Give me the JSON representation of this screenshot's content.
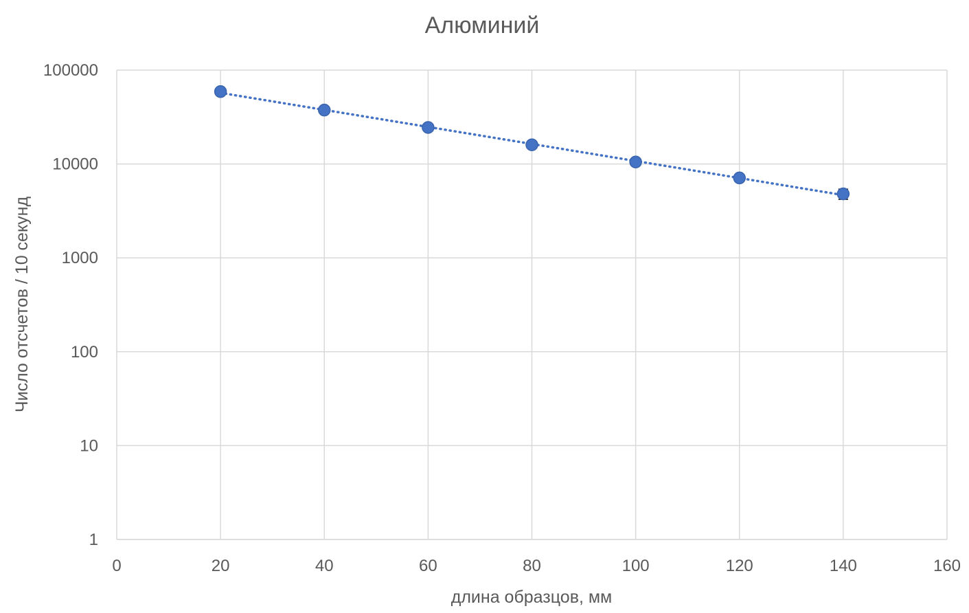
{
  "chart_data": {
    "type": "scatter",
    "title": "Алюминий",
    "xlabel": "длина образцов, мм",
    "ylabel": "Число отсчетов / 10 секунд",
    "xlim": [
      0,
      160
    ],
    "ylim": [
      1,
      100000
    ],
    "y_scale": "log",
    "x_ticks": [
      0,
      20,
      40,
      60,
      80,
      100,
      120,
      140,
      160
    ],
    "y_ticks": [
      1,
      10,
      100,
      1000,
      10000,
      100000
    ],
    "x_tick_labels": [
      "0",
      "20",
      "40",
      "60",
      "80",
      "100",
      "120",
      "140",
      "160"
    ],
    "y_tick_labels": [
      "1",
      "10",
      "100",
      "1000",
      "10000",
      "100000"
    ],
    "grid": true,
    "legend": "none",
    "series": [
      {
        "x": [
          20,
          40,
          60,
          80,
          100,
          120,
          140
        ],
        "y": [
          59000,
          37500,
          24500,
          16000,
          10500,
          7100,
          4800
        ],
        "y_error": [
          1500,
          1200,
          1000,
          800,
          700,
          600,
          600
        ],
        "marker": "circle",
        "color": "#4472C4",
        "trendline": "exponential"
      }
    ],
    "colors": {
      "grid": "#d9d9d9",
      "text": "#595959",
      "marker": "#4472C4",
      "error_bar": "#000000"
    }
  }
}
